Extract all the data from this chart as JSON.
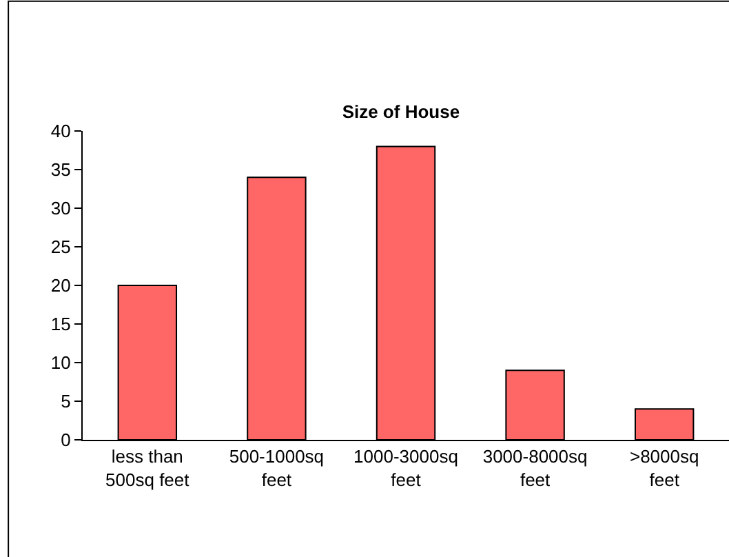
{
  "chart_data": {
    "type": "bar",
    "title": "Size of House",
    "categories": [
      "less than 500sq feet",
      "500-1000sq feet",
      "1000-3000sq feet",
      "3000-8000sq feet",
      ">8000sq feet"
    ],
    "values": [
      20,
      34,
      38,
      9,
      4
    ],
    "color": "#ff6666",
    "ylim": [
      0,
      40
    ],
    "yticks": [
      0,
      5,
      10,
      15,
      20,
      25,
      30,
      35,
      40
    ],
    "grid": false,
    "legend": false
  }
}
